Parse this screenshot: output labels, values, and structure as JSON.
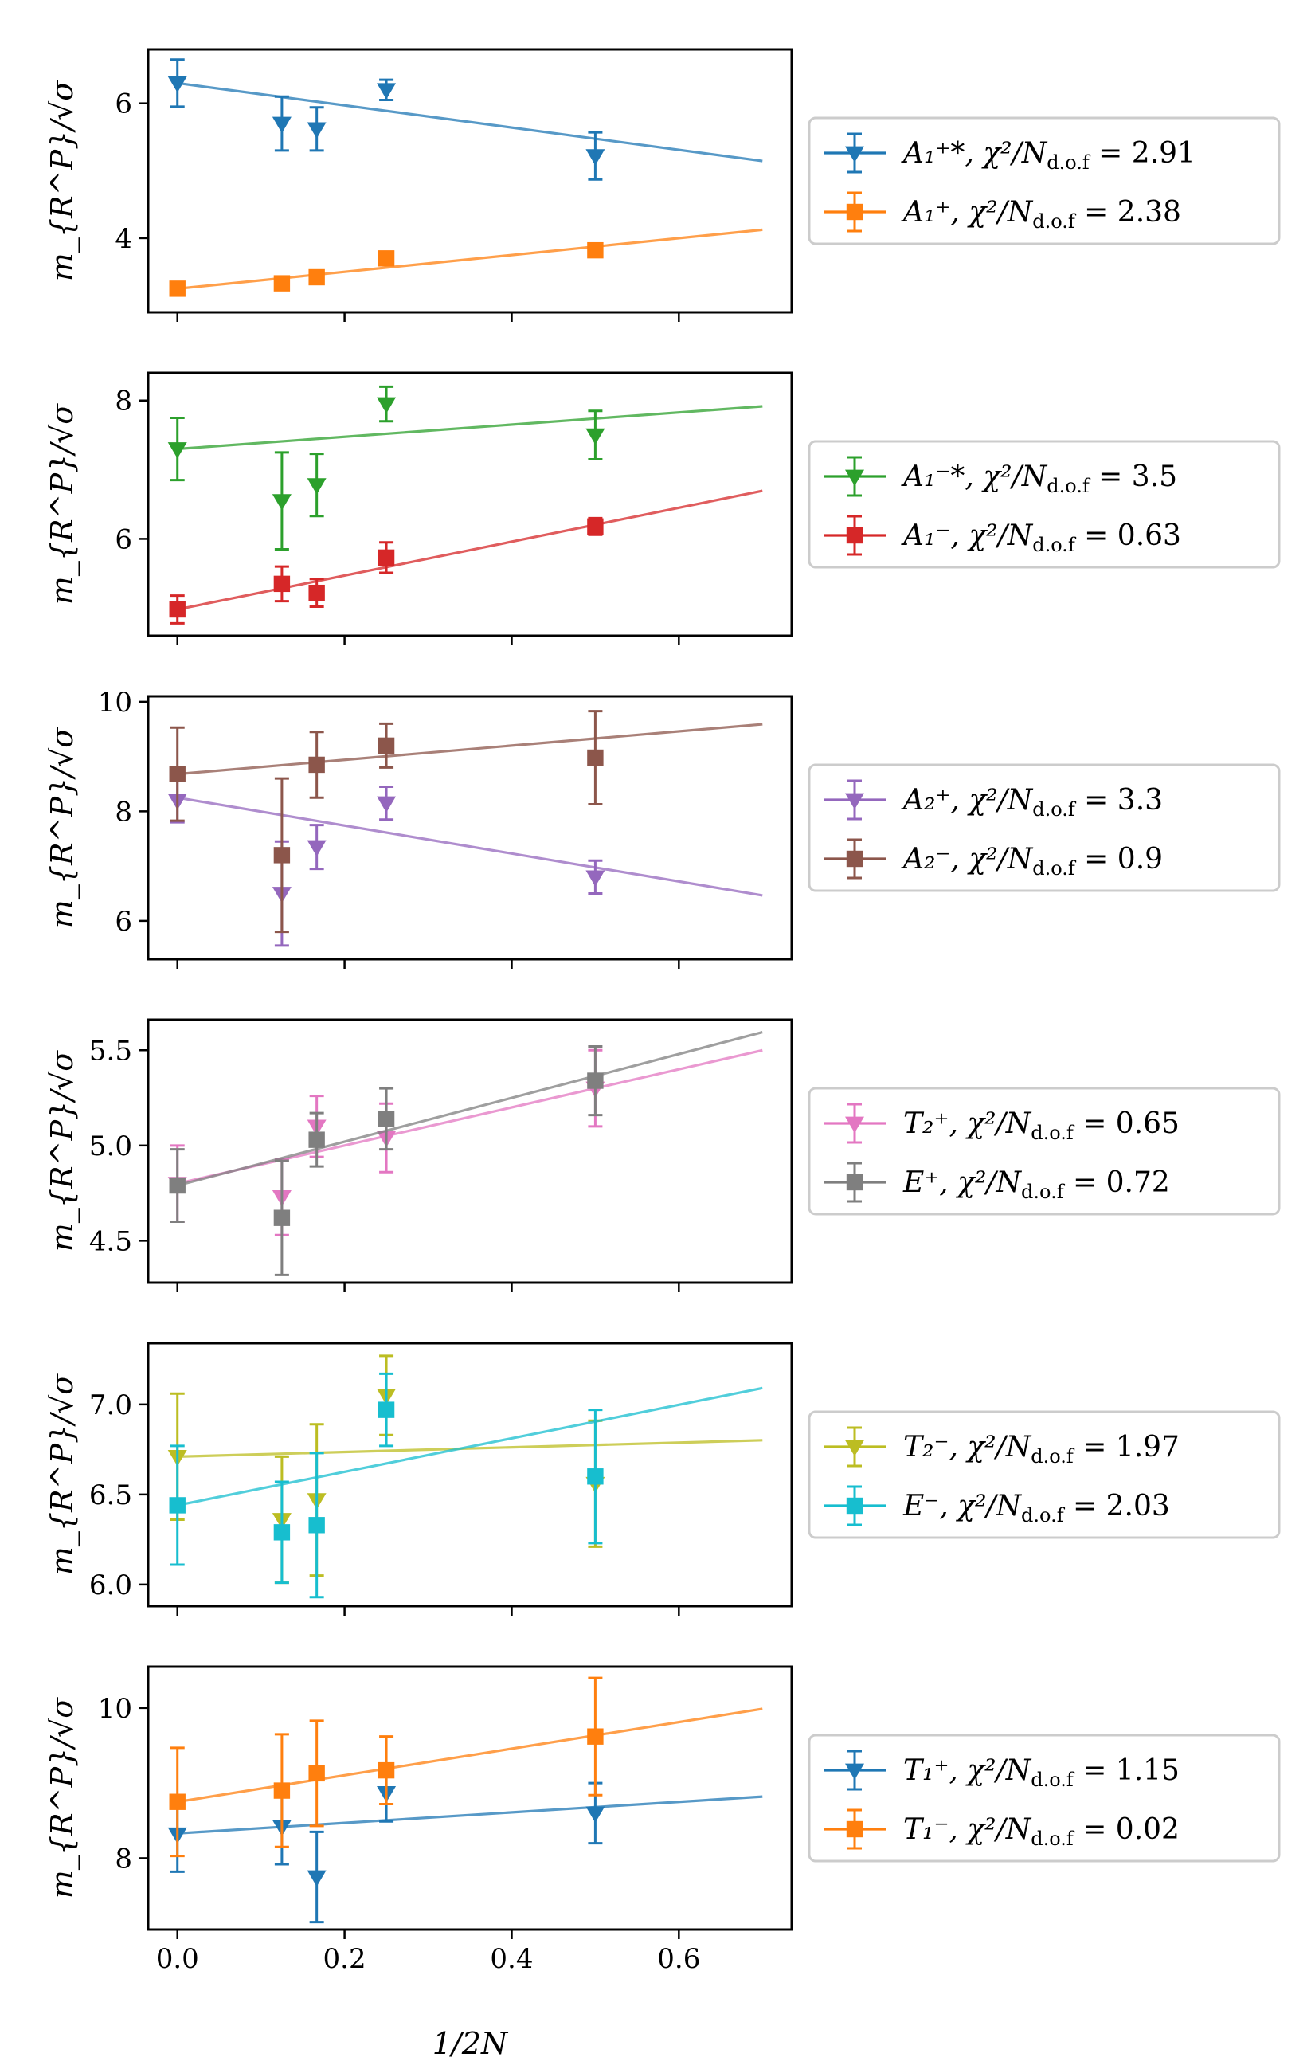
{
  "figure": {
    "xlabel": "1/2N"
  },
  "chart_data": [
    {
      "type": "scatter",
      "ylabel": "m_{R^P}/√σ",
      "xlim": [
        -0.035,
        0.735
      ],
      "ylim": [
        2.9,
        6.8
      ],
      "xticks": [
        "0.0",
        "0.2",
        "0.4",
        "0.6"
      ],
      "xtick_values": [
        0,
        0.2,
        0.4,
        0.6
      ],
      "yticks": [
        "4",
        "6"
      ],
      "ytick_values": [
        4,
        6
      ],
      "grid": false,
      "legend_position": "right",
      "series": [
        {
          "label": "A₁⁺*, χ²/N",
          "sub": "d.o.f",
          "value": "= 2.91",
          "color": "#1f77b4",
          "marker": "triangle",
          "x": [
            0.0,
            0.125,
            0.1667,
            0.25,
            0.5
          ],
          "y": [
            6.3,
            5.7,
            5.62,
            6.2,
            5.22
          ],
          "err": [
            0.35,
            0.4,
            0.32,
            0.15,
            0.35
          ],
          "fit": [
            6.3,
            -1.65
          ]
        },
        {
          "label": "A₁⁺, χ²/N",
          "sub": "d.o.f",
          "value": "= 2.38",
          "color": "#ff7f0e",
          "marker": "square",
          "x": [
            0.0,
            0.125,
            0.1667,
            0.25,
            0.5
          ],
          "y": [
            3.25,
            3.33,
            3.42,
            3.7,
            3.82
          ],
          "err": [
            0.05,
            0.05,
            0.05,
            0.05,
            0.06
          ],
          "fit": [
            3.25,
            1.25
          ]
        }
      ]
    },
    {
      "type": "scatter",
      "ylabel": "m_{R^P}/√σ",
      "xlim": [
        -0.035,
        0.735
      ],
      "ylim": [
        4.6,
        8.4
      ],
      "xticks": [
        "0.0",
        "0.2",
        "0.4",
        "0.6"
      ],
      "xtick_values": [
        0,
        0.2,
        0.4,
        0.6
      ],
      "yticks": [
        "6",
        "8"
      ],
      "ytick_values": [
        6,
        8
      ],
      "grid": false,
      "legend_position": "right",
      "series": [
        {
          "label": "A₁⁻*, χ²/N",
          "sub": "d.o.f",
          "value": "= 3.5",
          "color": "#2ca02c",
          "marker": "triangle",
          "x": [
            0.0,
            0.125,
            0.1667,
            0.25,
            0.5
          ],
          "y": [
            7.3,
            6.55,
            6.78,
            7.95,
            7.5
          ],
          "err": [
            0.45,
            0.7,
            0.45,
            0.25,
            0.35
          ],
          "fit": [
            7.3,
            0.88
          ]
        },
        {
          "label": "A₁⁻, χ²/N",
          "sub": "d.o.f",
          "value": "= 0.63",
          "color": "#d62728",
          "marker": "square",
          "x": [
            0.0,
            0.125,
            0.1667,
            0.25,
            0.5
          ],
          "y": [
            4.98,
            5.35,
            5.22,
            5.73,
            6.18
          ],
          "err": [
            0.2,
            0.25,
            0.2,
            0.22,
            0.12
          ],
          "fit": [
            4.98,
            2.45
          ]
        }
      ]
    },
    {
      "type": "scatter",
      "ylabel": "m_{R^P}/√σ",
      "xlim": [
        -0.035,
        0.735
      ],
      "ylim": [
        5.3,
        10.1
      ],
      "xticks": [
        "0.0",
        "0.2",
        "0.4",
        "0.6"
      ],
      "xtick_values": [
        0,
        0.2,
        0.4,
        0.6
      ],
      "yticks": [
        "6",
        "8",
        "10"
      ],
      "ytick_values": [
        6,
        8,
        10
      ],
      "grid": false,
      "legend_position": "right",
      "series": [
        {
          "label": "A₂⁺, χ²/N",
          "sub": "d.o.f",
          "value": "= 3.3",
          "color": "#9467bd",
          "marker": "triangle",
          "x": [
            0.0,
            0.125,
            0.1667,
            0.25,
            0.5
          ],
          "y": [
            8.2,
            6.5,
            7.35,
            8.15,
            6.8
          ],
          "err": [
            0.4,
            0.95,
            0.4,
            0.3,
            0.3
          ],
          "fit": [
            8.25,
            -2.55
          ]
        },
        {
          "label": "A₂⁻, χ²/N",
          "sub": "d.o.f",
          "value": "= 0.9",
          "color": "#8c564b",
          "marker": "square",
          "x": [
            0.0,
            0.125,
            0.1667,
            0.25,
            0.5
          ],
          "y": [
            8.68,
            7.2,
            8.85,
            9.2,
            8.98
          ],
          "err": [
            0.85,
            1.4,
            0.6,
            0.4,
            0.85
          ],
          "fit": [
            8.68,
            1.3
          ]
        }
      ]
    },
    {
      "type": "scatter",
      "ylabel": "m_{R^P}/√σ",
      "xlim": [
        -0.035,
        0.735
      ],
      "ylim": [
        4.28,
        5.66
      ],
      "xticks": [
        "0.0",
        "0.2",
        "0.4",
        "0.6"
      ],
      "xtick_values": [
        0,
        0.2,
        0.4,
        0.6
      ],
      "yticks": [
        "4.5",
        "5.0",
        "5.5"
      ],
      "ytick_values": [
        4.5,
        5.0,
        5.5
      ],
      "grid": false,
      "legend_position": "right",
      "series": [
        {
          "label": "T₂⁺, χ²/N",
          "sub": "d.o.f",
          "value": "= 0.65",
          "color": "#e377c2",
          "marker": "triangle",
          "x": [
            0.0,
            0.125,
            0.1667,
            0.25,
            0.5
          ],
          "y": [
            4.8,
            4.73,
            5.1,
            5.04,
            5.3
          ],
          "err": [
            0.2,
            0.2,
            0.16,
            0.18,
            0.2
          ],
          "fit": [
            4.8,
            1.0
          ]
        },
        {
          "label": "E⁺, χ²/N",
          "sub": "d.o.f",
          "value": "= 0.72",
          "color": "#7f7f7f",
          "marker": "square",
          "x": [
            0.0,
            0.125,
            0.1667,
            0.25,
            0.5
          ],
          "y": [
            4.79,
            4.62,
            5.03,
            5.14,
            5.34
          ],
          "err": [
            0.19,
            0.3,
            0.14,
            0.16,
            0.18
          ],
          "fit": [
            4.79,
            1.15
          ]
        }
      ]
    },
    {
      "type": "scatter",
      "ylabel": "m_{R^P}/√σ",
      "xlim": [
        -0.035,
        0.735
      ],
      "ylim": [
        5.88,
        7.34
      ],
      "xticks": [
        "0.0",
        "0.2",
        "0.4",
        "0.6"
      ],
      "xtick_values": [
        0,
        0.2,
        0.4,
        0.6
      ],
      "yticks": [
        "6.0",
        "6.5",
        "7.0"
      ],
      "ytick_values": [
        6.0,
        6.5,
        7.0
      ],
      "grid": false,
      "legend_position": "right",
      "series": [
        {
          "label": "T₂⁻, χ²/N",
          "sub": "d.o.f",
          "value": "= 1.97",
          "color": "#bcbd22",
          "marker": "triangle",
          "x": [
            0.0,
            0.125,
            0.1667,
            0.25,
            0.5
          ],
          "y": [
            6.71,
            6.36,
            6.47,
            7.05,
            6.56
          ],
          "err": [
            0.35,
            0.35,
            0.42,
            0.22,
            0.35
          ],
          "fit": [
            6.71,
            0.13
          ]
        },
        {
          "label": "E⁻, χ²/N",
          "sub": "d.o.f",
          "value": "= 2.03",
          "color": "#17becf",
          "marker": "square",
          "x": [
            0.0,
            0.125,
            0.1667,
            0.25,
            0.5
          ],
          "y": [
            6.44,
            6.29,
            6.33,
            6.97,
            6.6
          ],
          "err": [
            0.33,
            0.28,
            0.4,
            0.2,
            0.37
          ],
          "fit": [
            6.44,
            0.93
          ]
        }
      ]
    },
    {
      "type": "scatter",
      "ylabel": "m_{R^P}/√σ",
      "xlim": [
        -0.035,
        0.735
      ],
      "ylim": [
        7.05,
        10.55
      ],
      "xticks": [
        "0.0",
        "0.2",
        "0.4",
        "0.6"
      ],
      "xtick_values": [
        0,
        0.2,
        0.4,
        0.6
      ],
      "yticks": [
        "8",
        "10"
      ],
      "ytick_values": [
        8,
        10
      ],
      "grid": false,
      "legend_position": "right",
      "series": [
        {
          "label": "T₁⁺, χ²/N",
          "sub": "d.o.f",
          "value": "= 1.15",
          "color": "#1f77b4",
          "marker": "triangle",
          "x": [
            0.0,
            0.125,
            0.1667,
            0.25,
            0.5
          ],
          "y": [
            8.32,
            8.42,
            7.75,
            8.87,
            8.6
          ],
          "err": [
            0.5,
            0.5,
            0.6,
            0.38,
            0.4
          ],
          "fit": [
            8.33,
            0.7
          ]
        },
        {
          "label": "T₁⁻, χ²/N",
          "sub": "d.o.f",
          "value": "= 0.02",
          "color": "#ff7f0e",
          "marker": "square",
          "x": [
            0.0,
            0.125,
            0.1667,
            0.25,
            0.5
          ],
          "y": [
            8.75,
            8.9,
            9.13,
            9.17,
            9.62
          ],
          "err": [
            0.72,
            0.75,
            0.7,
            0.45,
            0.78
          ],
          "fit": [
            8.75,
            1.77
          ]
        }
      ]
    }
  ]
}
